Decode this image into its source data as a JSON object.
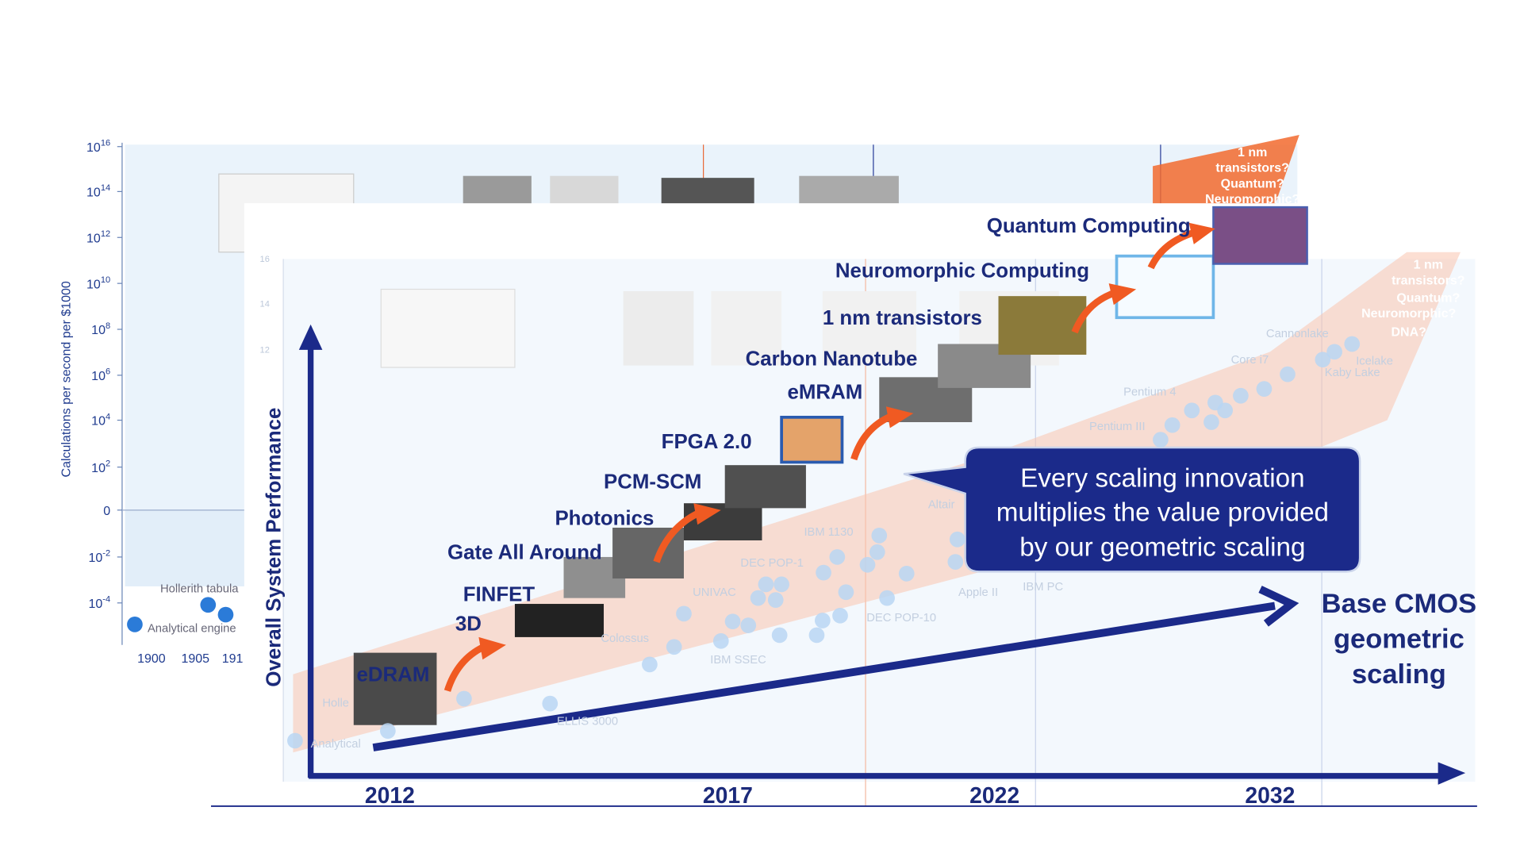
{
  "background_chart": {
    "y_axis_label": "Calculations per second per $1000",
    "yticks": [
      {
        "base": "10",
        "exp": "16"
      },
      {
        "base": "10",
        "exp": "14"
      },
      {
        "base": "10",
        "exp": "12"
      },
      {
        "base": "10",
        "exp": "10"
      },
      {
        "base": "10",
        "exp": "8"
      },
      {
        "base": "10",
        "exp": "6"
      },
      {
        "base": "10",
        "exp": "4"
      },
      {
        "base": "10",
        "exp": "2"
      },
      {
        "base": "0"
      },
      {
        "base": "10",
        "exp": "-2"
      },
      {
        "base": "10",
        "exp": "-4"
      }
    ],
    "x_labels": [
      "1900",
      "1905",
      "191"
    ],
    "point_labels": [
      "Hollerith tabula",
      "Analytical engine"
    ],
    "band_labels": [
      "1 nm",
      "transistors?",
      "Quantum?",
      "Neuromorphic?"
    ]
  },
  "foreground": {
    "y_axis_label": "Overall System Performance",
    "yticks": [
      "16",
      "14",
      "12"
    ],
    "x_labels": [
      "2012",
      "2017",
      "2022",
      "2032"
    ],
    "innovations": [
      "eDRAM",
      "3D",
      "FINFET",
      "Gate All Around",
      "Photonics",
      "PCM-SCM",
      "FPGA 2.0",
      "eMRAM",
      "Carbon Nanotube",
      "1 nm transistors",
      "Neuromorphic Computing",
      "Quantum Computing"
    ],
    "callout": [
      "Every scaling innovation",
      "multiplies the value provided",
      "by our geometric scaling"
    ],
    "base_label": [
      "Base CMOS",
      "geometric",
      "scaling"
    ],
    "band_labels": [
      "1 nm",
      "transistors?",
      "Quantum?",
      "Neuromorphic?",
      "DNA?"
    ],
    "faded_labels": [
      "IBM 1130",
      "DEC POP-1",
      "UNIVAC",
      "Colossus",
      "IBM SSEC",
      "Apple II",
      "IBM PC",
      "DEC POP-10",
      "Altair",
      "Pentium 4",
      "Pentium III",
      "Core i7",
      "Cannonlake",
      "Icelake",
      "Kaby Lake",
      "ELLIS 3000",
      "Analytical",
      "Holle"
    ]
  }
}
